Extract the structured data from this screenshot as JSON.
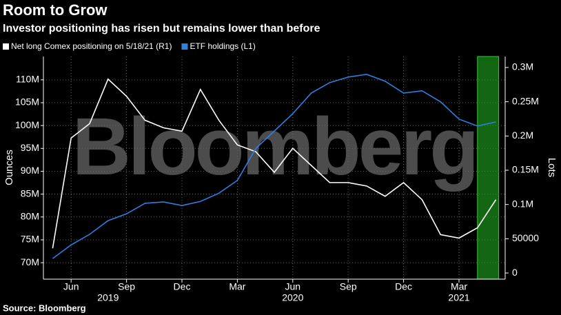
{
  "chart_data": {
    "type": "line",
    "title": "Room to Grow",
    "subtitle": "Investor positioning has risen but remains lower than before",
    "source": "Source: Bloomberg",
    "watermark": "Bloomberg",
    "y_label": "Ounces",
    "y2_label": "Lots",
    "x": [
      "2019-05",
      "2019-06",
      "2019-07",
      "2019-08",
      "2019-09",
      "2019-10",
      "2019-11",
      "2019-12",
      "2020-01",
      "2020-02",
      "2020-03",
      "2020-04",
      "2020-05",
      "2020-06",
      "2020-07",
      "2020-08",
      "2020-09",
      "2020-10",
      "2020-11",
      "2020-12",
      "2021-01",
      "2021-02",
      "2021-03",
      "2021-04",
      "2021-05"
    ],
    "series": [
      {
        "name": "Net long Comex positioning on 5/18/21 (R1)",
        "color": "#ffffff",
        "axis": "y2",
        "values": [
          36000,
          197000,
          218000,
          283000,
          258000,
          223000,
          212000,
          207000,
          268000,
          223000,
          187000,
          177000,
          147000,
          182000,
          157000,
          132000,
          132000,
          127000,
          112000,
          132000,
          107000,
          56000,
          51000,
          66000,
          107000
        ]
      },
      {
        "name": "ETF holdings (L1)",
        "color": "#2f7fe0",
        "values": [
          70900000,
          73900000,
          76200000,
          79200000,
          80700000,
          83000000,
          83300000,
          82500000,
          83400000,
          85200000,
          88000000,
          95000000,
          98800000,
          102600000,
          107100000,
          109400000,
          110600000,
          111200000,
          109700000,
          107100000,
          107600000,
          105200000,
          101400000,
          99900000,
          100800000
        ]
      }
    ],
    "xlim": [
      "2019-05",
      "2021-05"
    ],
    "xticks": [
      {
        "value": "2019-06",
        "label": "Jun"
      },
      {
        "value": "2019-09",
        "label": "Sep"
      },
      {
        "value": "2019-12",
        "label": "Dec"
      },
      {
        "value": "2020-03",
        "label": "Mar"
      },
      {
        "value": "2020-06",
        "label": "Jun"
      },
      {
        "value": "2020-09",
        "label": "Sep"
      },
      {
        "value": "2020-12",
        "label": "Dec"
      },
      {
        "value": "2021-03",
        "label": "Mar"
      }
    ],
    "year_labels": [
      {
        "value": "2019-08",
        "label": "2019"
      },
      {
        "value": "2020-06",
        "label": "2020"
      },
      {
        "value": "2021-03",
        "label": "2021"
      }
    ],
    "ylim": [
      66400000,
      115100000
    ],
    "yticks": [
      {
        "value": 70000000,
        "label": "70M"
      },
      {
        "value": 75000000,
        "label": "75M"
      },
      {
        "value": 80000000,
        "label": "80M"
      },
      {
        "value": 85000000,
        "label": "85M"
      },
      {
        "value": 90000000,
        "label": "90M"
      },
      {
        "value": 95000000,
        "label": "95M"
      },
      {
        "value": 100000000,
        "label": "100M"
      },
      {
        "value": 105000000,
        "label": "105M"
      },
      {
        "value": 110000000,
        "label": "110M"
      }
    ],
    "y2lim": [
      -9000,
      316000
    ],
    "y2ticks": [
      0,
      50000,
      {
        "value": 100000,
        "label": "0.1M"
      },
      {
        "value": 150000,
        "label": "0.15M"
      },
      {
        "value": 200000,
        "label": "0.2M"
      },
      {
        "value": 250000,
        "label": "0.25M"
      },
      {
        "value": 300000,
        "label": "0.3M"
      }
    ],
    "highlight_x": [
      "2021-04",
      "2021-05"
    ],
    "grid": true
  }
}
